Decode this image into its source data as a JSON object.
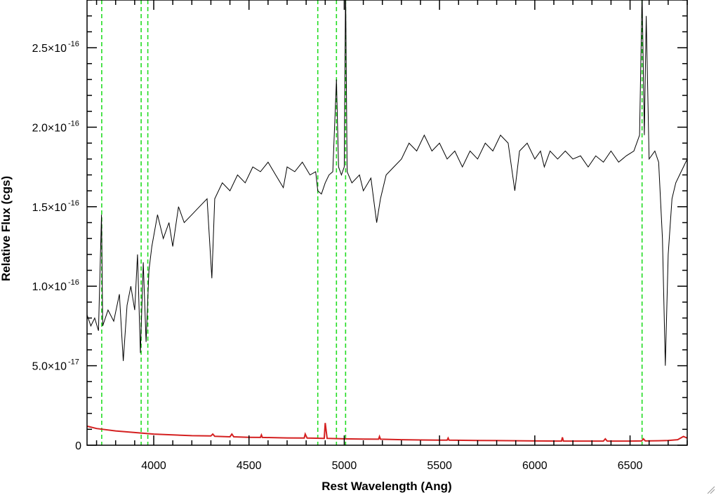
{
  "chart_data": {
    "type": "line",
    "xlabel": "Rest Wavelength (Ang)",
    "ylabel": "Relative Flux (cgs)",
    "xlim": [
      3650,
      6800
    ],
    "ylim": [
      0,
      2.8e-16
    ],
    "x_ticks": [
      {
        "value": 4000,
        "label": "4000"
      },
      {
        "value": 4500,
        "label": "4500"
      },
      {
        "value": 5000,
        "label": "5000"
      },
      {
        "value": 5500,
        "label": "5500"
      },
      {
        "value": 6000,
        "label": "6000"
      },
      {
        "value": 6500,
        "label": "6500"
      }
    ],
    "y_ticks": [
      {
        "value": 0,
        "mantissa": "0",
        "exponent": ""
      },
      {
        "value": 5e-17,
        "mantissa": "5.0×10",
        "exponent": "-17"
      },
      {
        "value": 1e-16,
        "mantissa": "1.0×10",
        "exponent": "-16"
      },
      {
        "value": 1.5e-16,
        "mantissa": "1.5×10",
        "exponent": "-16"
      },
      {
        "value": 2e-16,
        "mantissa": "2.0×10",
        "exponent": "-16"
      },
      {
        "value": 2.5e-16,
        "mantissa": "2.5×10",
        "exponent": "-16"
      }
    ],
    "emission_line_markers": [
      3727,
      3934,
      3969,
      4861,
      4959,
      5007,
      6563
    ],
    "series": [
      {
        "color": "#000000",
        "points": [
          [
            3650,
            8.2e-17
          ],
          [
            3670,
            7.5e-17
          ],
          [
            3690,
            8e-17
          ],
          [
            3710,
            7.2e-17
          ],
          [
            3726,
            1.45e-16
          ],
          [
            3732,
            7.5e-17
          ],
          [
            3760,
            8.5e-17
          ],
          [
            3790,
            7.8e-17
          ],
          [
            3820,
            9.5e-17
          ],
          [
            3840,
            5.3e-17
          ],
          [
            3860,
            8.8e-17
          ],
          [
            3880,
            1e-16
          ],
          [
            3900,
            8.5e-17
          ],
          [
            3915,
            1.2e-16
          ],
          [
            3930,
            5.8e-17
          ],
          [
            3945,
            1.15e-16
          ],
          [
            3960,
            6.5e-17
          ],
          [
            3975,
            1.1e-16
          ],
          [
            3990,
            1.25e-16
          ],
          [
            4020,
            1.45e-16
          ],
          [
            4050,
            1.3e-16
          ],
          [
            4080,
            1.4e-16
          ],
          [
            4100,
            1.25e-16
          ],
          [
            4130,
            1.5e-16
          ],
          [
            4160,
            1.4e-16
          ],
          [
            4200,
            1.45e-16
          ],
          [
            4240,
            1.5e-16
          ],
          [
            4280,
            1.55e-16
          ],
          [
            4305,
            1.05e-16
          ],
          [
            4320,
            1.55e-16
          ],
          [
            4360,
            1.65e-16
          ],
          [
            4400,
            1.6e-16
          ],
          [
            4440,
            1.7e-16
          ],
          [
            4480,
            1.65e-16
          ],
          [
            4520,
            1.75e-16
          ],
          [
            4560,
            1.72e-16
          ],
          [
            4600,
            1.78e-16
          ],
          [
            4640,
            1.7e-16
          ],
          [
            4680,
            1.62e-16
          ],
          [
            4700,
            1.75e-16
          ],
          [
            4740,
            1.72e-16
          ],
          [
            4780,
            1.78e-16
          ],
          [
            4820,
            1.7e-16
          ],
          [
            4850,
            1.72e-16
          ],
          [
            4861,
            1.6e-16
          ],
          [
            4880,
            1.58e-16
          ],
          [
            4900,
            1.65e-16
          ],
          [
            4920,
            1.7e-16
          ],
          [
            4940,
            1.72e-16
          ],
          [
            4959,
            2.3e-16
          ],
          [
            4970,
            1.75e-16
          ],
          [
            4985,
            1.7e-16
          ],
          [
            5000,
            1.75e-16
          ],
          [
            5007,
            2.9e-16
          ],
          [
            5015,
            1.72e-16
          ],
          [
            5040,
            1.65e-16
          ],
          [
            5080,
            1.7e-16
          ],
          [
            5100,
            1.6e-16
          ],
          [
            5140,
            1.68e-16
          ],
          [
            5170,
            1.4e-16
          ],
          [
            5190,
            1.55e-16
          ],
          [
            5220,
            1.7e-16
          ],
          [
            5260,
            1.75e-16
          ],
          [
            5300,
            1.8e-16
          ],
          [
            5340,
            1.9e-16
          ],
          [
            5380,
            1.85e-16
          ],
          [
            5420,
            1.95e-16
          ],
          [
            5460,
            1.85e-16
          ],
          [
            5500,
            1.9e-16
          ],
          [
            5540,
            1.8e-16
          ],
          [
            5580,
            1.85e-16
          ],
          [
            5620,
            1.75e-16
          ],
          [
            5660,
            1.85e-16
          ],
          [
            5700,
            1.8e-16
          ],
          [
            5740,
            1.9e-16
          ],
          [
            5780,
            1.85e-16
          ],
          [
            5820,
            1.95e-16
          ],
          [
            5860,
            1.9e-16
          ],
          [
            5895,
            1.6e-16
          ],
          [
            5920,
            1.85e-16
          ],
          [
            5960,
            1.9e-16
          ],
          [
            6000,
            1.8e-16
          ],
          [
            6030,
            1.85e-16
          ],
          [
            6050,
            1.75e-16
          ],
          [
            6080,
            1.85e-16
          ],
          [
            6120,
            1.8e-16
          ],
          [
            6160,
            1.85e-16
          ],
          [
            6200,
            1.8e-16
          ],
          [
            6240,
            1.82e-16
          ],
          [
            6280,
            1.75e-16
          ],
          [
            6320,
            1.82e-16
          ],
          [
            6360,
            1.78e-16
          ],
          [
            6400,
            1.85e-16
          ],
          [
            6440,
            1.78e-16
          ],
          [
            6480,
            1.82e-16
          ],
          [
            6520,
            1.85e-16
          ],
          [
            6550,
            1.95e-16
          ],
          [
            6563,
            2.85e-16
          ],
          [
            6575,
            1.95e-16
          ],
          [
            6585,
            2.7e-16
          ],
          [
            6600,
            1.8e-16
          ],
          [
            6630,
            1.85e-16
          ],
          [
            6650,
            1.78e-16
          ],
          [
            6670,
            1.3e-16
          ],
          [
            6685,
            5e-17
          ],
          [
            6700,
            1.2e-16
          ],
          [
            6720,
            1.55e-16
          ],
          [
            6740,
            1.65e-16
          ],
          [
            6760,
            1.7e-16
          ],
          [
            6780,
            1.75e-16
          ],
          [
            6800,
            1.8e-16
          ]
        ]
      },
      {
        "color": "#d42020",
        "points": [
          [
            3650,
            1.2e-17
          ],
          [
            3700,
            1.05e-17
          ],
          [
            3800,
            9e-18
          ],
          [
            3900,
            8e-18
          ],
          [
            4000,
            7e-18
          ],
          [
            4100,
            6.5e-18
          ],
          [
            4200,
            6e-18
          ],
          [
            4300,
            5.8e-18
          ],
          [
            4310,
            7e-18
          ],
          [
            4320,
            5.6e-18
          ],
          [
            4400,
            5.3e-18
          ],
          [
            4410,
            7e-18
          ],
          [
            4420,
            5.3e-18
          ],
          [
            4500,
            5e-18
          ],
          [
            4560,
            4.9e-18
          ],
          [
            4565,
            6.5e-18
          ],
          [
            4570,
            4.9e-18
          ],
          [
            4700,
            4.6e-18
          ],
          [
            4790,
            4.5e-18
          ],
          [
            4795,
            7e-18
          ],
          [
            4805,
            4.5e-18
          ],
          [
            4895,
            4.3e-18
          ],
          [
            4900,
            1.4e-17
          ],
          [
            4910,
            4.3e-18
          ],
          [
            5000,
            4e-18
          ],
          [
            5100,
            3.9e-18
          ],
          [
            5180,
            3.8e-18
          ],
          [
            5185,
            5.5e-18
          ],
          [
            5190,
            3.8e-18
          ],
          [
            5300,
            3.5e-18
          ],
          [
            5400,
            3.3e-18
          ],
          [
            5500,
            3.2e-18
          ],
          [
            5540,
            3.2e-18
          ],
          [
            5545,
            4.5e-18
          ],
          [
            5550,
            3.2e-18
          ],
          [
            5700,
            3e-18
          ],
          [
            5800,
            2.9e-18
          ],
          [
            5900,
            2.8e-18
          ],
          [
            6000,
            2.7e-18
          ],
          [
            6140,
            2.6e-18
          ],
          [
            6145,
            5e-18
          ],
          [
            6150,
            2.6e-18
          ],
          [
            6300,
            2.6e-18
          ],
          [
            6360,
            2.6e-18
          ],
          [
            6370,
            4e-18
          ],
          [
            6380,
            2.6e-18
          ],
          [
            6500,
            2.6e-18
          ],
          [
            6560,
            2.7e-18
          ],
          [
            6570,
            4e-18
          ],
          [
            6580,
            2.7e-18
          ],
          [
            6650,
            2.8e-18
          ],
          [
            6700,
            3e-18
          ],
          [
            6750,
            3.5e-18
          ],
          [
            6780,
            5.5e-18
          ],
          [
            6800,
            4.5e-18
          ]
        ]
      }
    ]
  }
}
